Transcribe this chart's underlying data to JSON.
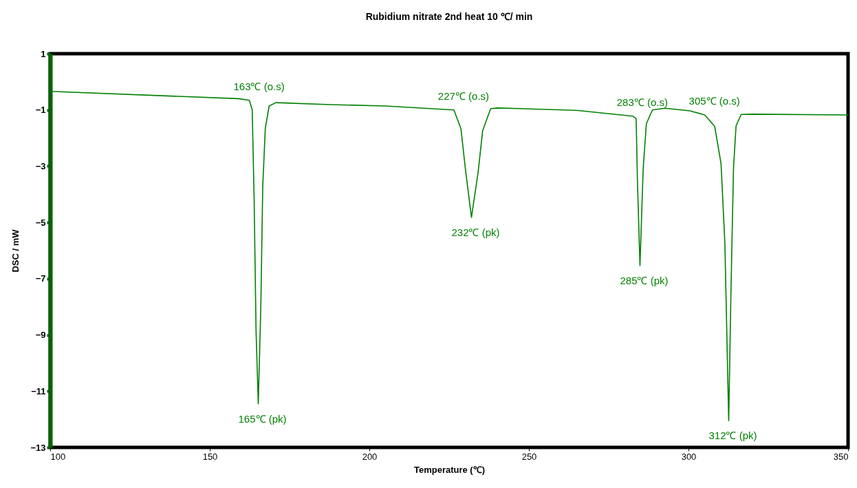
{
  "chart_data": {
    "type": "line",
    "title": "Rubidium nitrate 2nd heat  10 ℃/ min",
    "xlabel": "Temperature (℃)",
    "ylabel": "DSC / mW",
    "series": [
      {
        "color": "#008000",
        "x": [
          100,
          159.1,
          162.4,
          163.3,
          163.9,
          164.5,
          165.2,
          166.0,
          166.6,
          167.4,
          168.6,
          170.7,
          187.8,
          205,
          226.5,
          228.7,
          230.2,
          232.0,
          234.1,
          235.5,
          238,
          240,
          261,
          265.3,
          282.5,
          283.6,
          284.0,
          284.8,
          285.8,
          286.8,
          288.7,
          292.6,
          300.4,
          305.1,
          308.2,
          310.2,
          311.4,
          312.6,
          313.3,
          314.1,
          314.9,
          316.5,
          320,
          350
        ],
        "values": [
          -0.34,
          -0.6,
          -0.66,
          -1.0,
          -4.19,
          -8.86,
          -11.45,
          -7.93,
          -3.72,
          -1.65,
          -0.86,
          -0.74,
          -0.81,
          -0.86,
          -1.0,
          -1.67,
          -3.2,
          -4.82,
          -3.2,
          -1.74,
          -0.96,
          -0.93,
          -1.0,
          -1.02,
          -1.22,
          -1.31,
          -3.53,
          -6.54,
          -3.09,
          -1.49,
          -1.0,
          -0.94,
          -1.03,
          -1.18,
          -1.58,
          -2.91,
          -5.74,
          -12.05,
          -7.52,
          -3.09,
          -1.57,
          -1.16,
          -1.15,
          -1.18
        ]
      }
    ],
    "xlim": [
      100,
      350
    ],
    "xticks": [
      100,
      150,
      200,
      250,
      300,
      350
    ],
    "ylim": [
      -13,
      1
    ],
    "yticks": [
      1,
      -1,
      -3,
      -5,
      -7,
      -9,
      -11,
      -13
    ],
    "grid": false,
    "annotations": [
      {
        "text": "163℃ (o.s)",
        "x": 162.4,
        "y": -0.66
      },
      {
        "text": "165℃ (pk)",
        "x": 165.2,
        "y": -11.45
      },
      {
        "text": "227℃ (o.s)",
        "x": 226.5,
        "y": -1.0
      },
      {
        "text": "232℃ (pk)",
        "x": 232.0,
        "y": -4.82
      },
      {
        "text": "283℃ (o.s)",
        "x": 282.5,
        "y": -1.22
      },
      {
        "text": "285℃ (pk)",
        "x": 284.8,
        "y": -6.54
      },
      {
        "text": "305℃ (o.s)",
        "x": 305.1,
        "y": -1.18
      },
      {
        "text": "312℃ (pk)",
        "x": 312.6,
        "y": -12.05
      }
    ]
  }
}
